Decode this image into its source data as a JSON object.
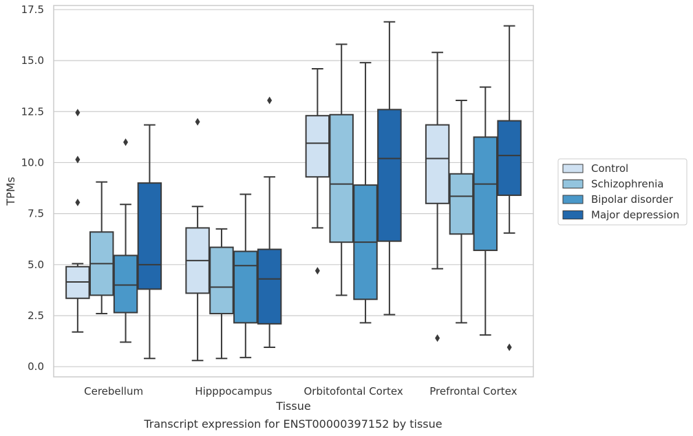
{
  "caption": "Transcript expression for ENST00000397152 by tissue",
  "chart_data": {
    "type": "box",
    "xlabel": "Tissue",
    "ylabel": "TPMs",
    "ylim": [
      -0.5,
      17.7
    ],
    "yticks": [
      "0.0",
      "2.5",
      "5.0",
      "7.5",
      "10.0",
      "12.5",
      "15.0",
      "17.5"
    ],
    "grid": "horizontal",
    "legend_position": "right",
    "categories": [
      "Cerebellum",
      "Hipppocampus",
      "Orbitofontal Cortex",
      "Prefrontal Cortex"
    ],
    "series": [
      {
        "name": "Control",
        "color": "#cfe1f2",
        "boxes": [
          {
            "whisker_low": 1.7,
            "q1": 3.35,
            "median": 4.15,
            "q3": 4.9,
            "whisker_high": 5.05,
            "outliers": [
              8.05,
              10.15,
              12.45
            ]
          },
          {
            "whisker_low": 0.3,
            "q1": 3.6,
            "median": 5.2,
            "q3": 6.8,
            "whisker_high": 7.85,
            "outliers": [
              12.0
            ]
          },
          {
            "whisker_low": 6.8,
            "q1": 9.3,
            "median": 10.95,
            "q3": 12.3,
            "whisker_high": 14.6,
            "outliers": [
              4.7
            ]
          },
          {
            "whisker_low": 4.8,
            "q1": 8.0,
            "median": 10.2,
            "q3": 11.85,
            "whisker_high": 15.4,
            "outliers": [
              1.4
            ]
          }
        ]
      },
      {
        "name": "Schizophrenia",
        "color": "#93c4de",
        "boxes": [
          {
            "whisker_low": 2.6,
            "q1": 3.5,
            "median": 5.05,
            "q3": 6.6,
            "whisker_high": 9.05,
            "outliers": []
          },
          {
            "whisker_low": 0.4,
            "q1": 2.6,
            "median": 3.9,
            "q3": 5.85,
            "whisker_high": 6.75,
            "outliers": []
          },
          {
            "whisker_low": 3.5,
            "q1": 6.1,
            "median": 8.95,
            "q3": 12.35,
            "whisker_high": 15.8,
            "outliers": []
          },
          {
            "whisker_low": 2.15,
            "q1": 6.5,
            "median": 8.35,
            "q3": 9.45,
            "whisker_high": 13.05,
            "outliers": []
          }
        ]
      },
      {
        "name": "Bipolar disorder",
        "color": "#4a98c9",
        "boxes": [
          {
            "whisker_low": 1.2,
            "q1": 2.65,
            "median": 4.0,
            "q3": 5.45,
            "whisker_high": 7.95,
            "outliers": [
              11.0
            ]
          },
          {
            "whisker_low": 0.45,
            "q1": 2.15,
            "median": 4.95,
            "q3": 5.65,
            "whisker_high": 8.45,
            "outliers": []
          },
          {
            "whisker_low": 2.15,
            "q1": 3.3,
            "median": 6.1,
            "q3": 8.9,
            "whisker_high": 14.9,
            "outliers": []
          },
          {
            "whisker_low": 1.55,
            "q1": 5.7,
            "median": 8.95,
            "q3": 11.25,
            "whisker_high": 13.7,
            "outliers": []
          }
        ]
      },
      {
        "name": "Major depression",
        "color": "#2268ac",
        "boxes": [
          {
            "whisker_low": 0.4,
            "q1": 3.8,
            "median": 5.0,
            "q3": 9.0,
            "whisker_high": 11.85,
            "outliers": []
          },
          {
            "whisker_low": 0.95,
            "q1": 2.1,
            "median": 4.3,
            "q3": 5.75,
            "whisker_high": 9.3,
            "outliers": [
              13.05
            ]
          },
          {
            "whisker_low": 2.55,
            "q1": 6.15,
            "median": 10.2,
            "q3": 12.6,
            "whisker_high": 16.9,
            "outliers": []
          },
          {
            "whisker_low": 6.55,
            "q1": 8.4,
            "median": 10.35,
            "q3": 12.05,
            "whisker_high": 16.7,
            "outliers": [
              0.95
            ]
          }
        ]
      }
    ]
  }
}
